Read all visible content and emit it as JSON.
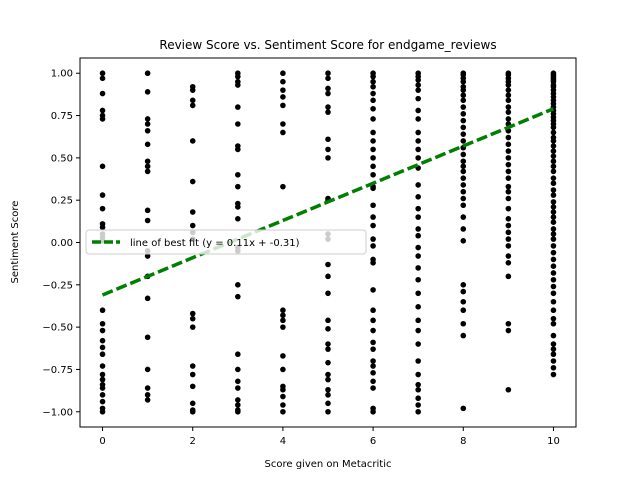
{
  "chart_data": {
    "type": "scatter",
    "title": "Review Score vs. Sentiment Score for endgame_reviews",
    "xlabel": "Score given on Metacritic",
    "ylabel": "Sentiment Score",
    "xlim": [
      -0.5,
      10.5
    ],
    "ylim": [
      -1.09,
      1.09
    ],
    "xticks": [
      0,
      2,
      4,
      6,
      8,
      10
    ],
    "yticks": [
      -1.0,
      -0.75,
      -0.5,
      -0.25,
      0.0,
      0.25,
      0.5,
      0.75,
      1.0
    ],
    "xtick_labels": [
      "0",
      "2",
      "4",
      "6",
      "8",
      "10"
    ],
    "ytick_labels": [
      "−1.00",
      "−0.75",
      "−0.50",
      "−0.25",
      "0.00",
      "0.25",
      "0.50",
      "0.75",
      "1.00"
    ],
    "grid": false,
    "point_color": "#000000",
    "points": [
      [
        0,
        1.0
      ],
      [
        0,
        0.97
      ],
      [
        0,
        0.88
      ],
      [
        0,
        0.78
      ],
      [
        0,
        0.75
      ],
      [
        0,
        0.73
      ],
      [
        0,
        0.45
      ],
      [
        0,
        0.28
      ],
      [
        0,
        0.2
      ],
      [
        0,
        0.11
      ],
      [
        0,
        0.09
      ],
      [
        0,
        0.05
      ],
      [
        0,
        0.03
      ],
      [
        0,
        0.01
      ],
      [
        0,
        -0.4
      ],
      [
        0,
        -0.48
      ],
      [
        0,
        -0.52
      ],
      [
        0,
        -0.58
      ],
      [
        0,
        -0.62
      ],
      [
        0,
        -0.66
      ],
      [
        0,
        -0.73
      ],
      [
        0,
        -0.78
      ],
      [
        0,
        -0.81
      ],
      [
        0,
        -0.84
      ],
      [
        0,
        -0.86
      ],
      [
        0,
        -0.9
      ],
      [
        0,
        -0.94
      ],
      [
        0,
        -0.98
      ],
      [
        0,
        -1.0
      ],
      [
        1,
        1.0
      ],
      [
        1,
        0.89
      ],
      [
        1,
        0.73
      ],
      [
        1,
        0.7
      ],
      [
        1,
        0.66
      ],
      [
        1,
        0.58
      ],
      [
        1,
        0.48
      ],
      [
        1,
        0.45
      ],
      [
        1,
        0.42
      ],
      [
        1,
        0.19
      ],
      [
        1,
        0.13
      ],
      [
        1,
        -0.05
      ],
      [
        1,
        -0.08
      ],
      [
        1,
        -0.2
      ],
      [
        1,
        -0.33
      ],
      [
        1,
        -0.56
      ],
      [
        1,
        -0.75
      ],
      [
        1,
        -0.86
      ],
      [
        1,
        -0.9
      ],
      [
        1,
        -0.93
      ],
      [
        2,
        0.92
      ],
      [
        2,
        0.9
      ],
      [
        2,
        0.84
      ],
      [
        2,
        0.81
      ],
      [
        2,
        0.6
      ],
      [
        2,
        0.36
      ],
      [
        2,
        0.18
      ],
      [
        2,
        0.1
      ],
      [
        2,
        0.06
      ],
      [
        2,
        0.02
      ],
      [
        2,
        -0.42
      ],
      [
        2,
        -0.45
      ],
      [
        2,
        -0.5
      ],
      [
        2,
        -0.73
      ],
      [
        2,
        -0.78
      ],
      [
        2,
        -0.85
      ],
      [
        2,
        -0.95
      ],
      [
        2,
        -0.99
      ],
      [
        2,
        -1.0
      ],
      [
        3,
        1.0
      ],
      [
        3,
        0.98
      ],
      [
        3,
        0.95
      ],
      [
        3,
        0.93
      ],
      [
        3,
        0.8
      ],
      [
        3,
        0.7
      ],
      [
        3,
        0.57
      ],
      [
        3,
        0.55
      ],
      [
        3,
        0.4
      ],
      [
        3,
        0.33
      ],
      [
        3,
        0.23
      ],
      [
        3,
        0.21
      ],
      [
        3,
        0.14
      ],
      [
        3,
        -0.03
      ],
      [
        3,
        -0.05
      ],
      [
        3,
        -0.25
      ],
      [
        3,
        -0.32
      ],
      [
        3,
        -0.66
      ],
      [
        3,
        -0.75
      ],
      [
        3,
        -0.82
      ],
      [
        3,
        -0.86
      ],
      [
        3,
        -0.93
      ],
      [
        3,
        -0.96
      ],
      [
        3,
        -0.99
      ],
      [
        3,
        -1.0
      ],
      [
        4,
        1.0
      ],
      [
        4,
        0.95
      ],
      [
        4,
        0.9
      ],
      [
        4,
        0.86
      ],
      [
        4,
        0.81
      ],
      [
        4,
        0.7
      ],
      [
        4,
        0.65
      ],
      [
        4,
        0.33
      ],
      [
        4,
        -0.4
      ],
      [
        4,
        -0.43
      ],
      [
        4,
        -0.46
      ],
      [
        4,
        -0.5
      ],
      [
        4,
        -0.67
      ],
      [
        4,
        -0.75
      ],
      [
        4,
        -0.85
      ],
      [
        4,
        -0.87
      ],
      [
        4,
        -0.91
      ],
      [
        4,
        -0.96
      ],
      [
        4,
        -1.0
      ],
      [
        5,
        1.0
      ],
      [
        5,
        0.97
      ],
      [
        5,
        0.91
      ],
      [
        5,
        0.88
      ],
      [
        5,
        0.8
      ],
      [
        5,
        0.77
      ],
      [
        5,
        0.61
      ],
      [
        5,
        0.55
      ],
      [
        5,
        0.5
      ],
      [
        5,
        0.26
      ],
      [
        5,
        0.25
      ],
      [
        5,
        0.05
      ],
      [
        5,
        0.02
      ],
      [
        5,
        -0.13
      ],
      [
        5,
        -0.2
      ],
      [
        5,
        -0.3
      ],
      [
        5,
        -0.46
      ],
      [
        5,
        -0.51
      ],
      [
        5,
        -0.6
      ],
      [
        5,
        -0.63
      ],
      [
        5,
        -0.71
      ],
      [
        5,
        -0.78
      ],
      [
        5,
        -0.81
      ],
      [
        5,
        -0.87
      ],
      [
        5,
        -0.9
      ],
      [
        5,
        -0.95
      ],
      [
        5,
        -1.0
      ],
      [
        6,
        1.0
      ],
      [
        6,
        0.98
      ],
      [
        6,
        0.95
      ],
      [
        6,
        0.92
      ],
      [
        6,
        0.88
      ],
      [
        6,
        0.84
      ],
      [
        6,
        0.79
      ],
      [
        6,
        0.73
      ],
      [
        6,
        0.65
      ],
      [
        6,
        0.6
      ],
      [
        6,
        0.55
      ],
      [
        6,
        0.5
      ],
      [
        6,
        0.45
      ],
      [
        6,
        0.4
      ],
      [
        6,
        0.33
      ],
      [
        6,
        0.32
      ],
      [
        6,
        0.22
      ],
      [
        6,
        0.15
      ],
      [
        6,
        0.1
      ],
      [
        6,
        0.02
      ],
      [
        6,
        -0.02
      ],
      [
        6,
        -0.1
      ],
      [
        6,
        -0.12
      ],
      [
        6,
        -0.28
      ],
      [
        6,
        -0.4
      ],
      [
        6,
        -0.46
      ],
      [
        6,
        -0.52
      ],
      [
        6,
        -0.59
      ],
      [
        6,
        -0.63
      ],
      [
        6,
        -0.7
      ],
      [
        6,
        -0.73
      ],
      [
        6,
        -0.77
      ],
      [
        6,
        -0.82
      ],
      [
        6,
        -0.86
      ],
      [
        6,
        -0.98
      ],
      [
        6,
        -1.0
      ],
      [
        7,
        1.0
      ],
      [
        7,
        0.98
      ],
      [
        7,
        0.96
      ],
      [
        7,
        0.93
      ],
      [
        7,
        0.9
      ],
      [
        7,
        0.85
      ],
      [
        7,
        0.78
      ],
      [
        7,
        0.73
      ],
      [
        7,
        0.65
      ],
      [
        7,
        0.6
      ],
      [
        7,
        0.55
      ],
      [
        7,
        0.5
      ],
      [
        7,
        0.44
      ],
      [
        7,
        0.34
      ],
      [
        7,
        0.27
      ],
      [
        7,
        0.2
      ],
      [
        7,
        0.15
      ],
      [
        7,
        0.08
      ],
      [
        7,
        0.04
      ],
      [
        7,
        -0.03
      ],
      [
        7,
        -0.08
      ],
      [
        7,
        -0.15
      ],
      [
        7,
        -0.22
      ],
      [
        7,
        -0.3
      ],
      [
        7,
        -0.38
      ],
      [
        7,
        -0.46
      ],
      [
        7,
        -0.52
      ],
      [
        7,
        -0.6
      ],
      [
        7,
        -0.7
      ],
      [
        7,
        -0.78
      ],
      [
        7,
        -0.84
      ],
      [
        7,
        -0.87
      ],
      [
        7,
        -0.92
      ],
      [
        7,
        -0.96
      ],
      [
        7,
        -1.0
      ],
      [
        8,
        1.0
      ],
      [
        8,
        0.99
      ],
      [
        8,
        0.97
      ],
      [
        8,
        0.95
      ],
      [
        8,
        0.92
      ],
      [
        8,
        0.9
      ],
      [
        8,
        0.87
      ],
      [
        8,
        0.84
      ],
      [
        8,
        0.8
      ],
      [
        8,
        0.76
      ],
      [
        8,
        0.72
      ],
      [
        8,
        0.68
      ],
      [
        8,
        0.64
      ],
      [
        8,
        0.6
      ],
      [
        8,
        0.56
      ],
      [
        8,
        0.52
      ],
      [
        8,
        0.48
      ],
      [
        8,
        0.45
      ],
      [
        8,
        0.42
      ],
      [
        8,
        0.38
      ],
      [
        8,
        0.34
      ],
      [
        8,
        0.3
      ],
      [
        8,
        0.26
      ],
      [
        8,
        0.22
      ],
      [
        8,
        0.15
      ],
      [
        8,
        0.08
      ],
      [
        8,
        0.01
      ],
      [
        8,
        -0.25
      ],
      [
        8,
        -0.29
      ],
      [
        8,
        -0.35
      ],
      [
        8,
        -0.4
      ],
      [
        8,
        -0.48
      ],
      [
        8,
        -0.55
      ],
      [
        8,
        -0.98
      ],
      [
        9,
        1.0
      ],
      [
        9,
        0.99
      ],
      [
        9,
        0.97
      ],
      [
        9,
        0.95
      ],
      [
        9,
        0.93
      ],
      [
        9,
        0.9
      ],
      [
        9,
        0.87
      ],
      [
        9,
        0.84
      ],
      [
        9,
        0.8
      ],
      [
        9,
        0.77
      ],
      [
        9,
        0.73
      ],
      [
        9,
        0.7
      ],
      [
        9,
        0.66
      ],
      [
        9,
        0.62
      ],
      [
        9,
        0.58
      ],
      [
        9,
        0.54
      ],
      [
        9,
        0.5
      ],
      [
        9,
        0.46
      ],
      [
        9,
        0.42
      ],
      [
        9,
        0.38
      ],
      [
        9,
        0.33
      ],
      [
        9,
        0.3
      ],
      [
        9,
        0.26
      ],
      [
        9,
        0.2
      ],
      [
        9,
        0.14
      ],
      [
        9,
        0.1
      ],
      [
        9,
        0.06
      ],
      [
        9,
        0.02
      ],
      [
        9,
        -0.02
      ],
      [
        9,
        -0.08
      ],
      [
        9,
        -0.12
      ],
      [
        9,
        -0.2
      ],
      [
        9,
        -0.48
      ],
      [
        9,
        -0.52
      ],
      [
        9,
        -0.87
      ],
      [
        10,
        1.0
      ],
      [
        10,
        0.99
      ],
      [
        10,
        0.98
      ],
      [
        10,
        0.97
      ],
      [
        10,
        0.96
      ],
      [
        10,
        0.95
      ],
      [
        10,
        0.93
      ],
      [
        10,
        0.92
      ],
      [
        10,
        0.9
      ],
      [
        10,
        0.88
      ],
      [
        10,
        0.86
      ],
      [
        10,
        0.84
      ],
      [
        10,
        0.82
      ],
      [
        10,
        0.8
      ],
      [
        10,
        0.78
      ],
      [
        10,
        0.76
      ],
      [
        10,
        0.74
      ],
      [
        10,
        0.72
      ],
      [
        10,
        0.7
      ],
      [
        10,
        0.68
      ],
      [
        10,
        0.65
      ],
      [
        10,
        0.62
      ],
      [
        10,
        0.6
      ],
      [
        10,
        0.57
      ],
      [
        10,
        0.54
      ],
      [
        10,
        0.51
      ],
      [
        10,
        0.48
      ],
      [
        10,
        0.45
      ],
      [
        10,
        0.42
      ],
      [
        10,
        0.38
      ],
      [
        10,
        0.35
      ],
      [
        10,
        0.31
      ],
      [
        10,
        0.28
      ],
      [
        10,
        0.24
      ],
      [
        10,
        0.21
      ],
      [
        10,
        0.18
      ],
      [
        10,
        0.15
      ],
      [
        10,
        0.12
      ],
      [
        10,
        0.08
      ],
      [
        10,
        0.05
      ],
      [
        10,
        0.02
      ],
      [
        10,
        -0.02
      ],
      [
        10,
        -0.06
      ],
      [
        10,
        -0.1
      ],
      [
        10,
        -0.14
      ],
      [
        10,
        -0.18
      ],
      [
        10,
        -0.22
      ],
      [
        10,
        -0.26
      ],
      [
        10,
        -0.3
      ],
      [
        10,
        -0.35
      ],
      [
        10,
        -0.4
      ],
      [
        10,
        -0.45
      ],
      [
        10,
        -0.48
      ],
      [
        10,
        -0.55
      ],
      [
        10,
        -0.6
      ],
      [
        10,
        -0.63
      ],
      [
        10,
        -0.66
      ],
      [
        10,
        -0.7
      ],
      [
        10,
        -0.74
      ],
      [
        10,
        -0.78
      ]
    ],
    "fit_line": {
      "label": "line of best fit (y = 0.11x + -0.31)",
      "slope": 0.11,
      "intercept": -0.31,
      "x_range": [
        0,
        10
      ],
      "color": "#008000",
      "style": "dashed"
    },
    "legend_placement": "center-left"
  }
}
